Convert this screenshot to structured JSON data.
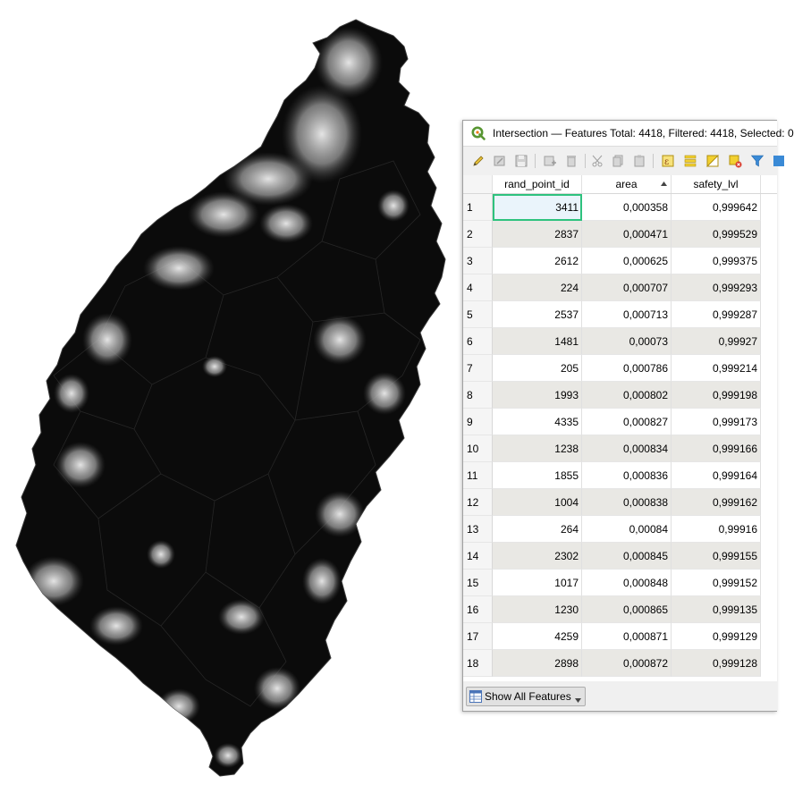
{
  "window": {
    "title": "Intersection — Features Total: 4418, Filtered: 4418, Selected: 0"
  },
  "toolbar": {
    "buttons": [
      {
        "name": "toggle-editing-icon"
      },
      {
        "name": "toggle-multi-edit-icon"
      },
      {
        "name": "save-edits-icon"
      },
      {
        "name": "add-feature-icon"
      },
      {
        "name": "delete-feature-icon"
      },
      {
        "name": "cut-icon"
      },
      {
        "name": "copy-icon"
      },
      {
        "name": "paste-icon"
      },
      {
        "name": "select-by-expression-icon"
      },
      {
        "name": "select-all-icon"
      },
      {
        "name": "invert-selection-icon"
      },
      {
        "name": "deselect-all-icon"
      },
      {
        "name": "filter-icon"
      }
    ]
  },
  "table": {
    "columns": [
      "rand_point_id",
      "area",
      "safety_lvl"
    ],
    "sorted_column": "area",
    "rows": [
      {
        "n": "1",
        "rand_point_id": "3411",
        "area": "0,000358",
        "safety_lvl": "0,999642"
      },
      {
        "n": "2",
        "rand_point_id": "2837",
        "area": "0,000471",
        "safety_lvl": "0,999529"
      },
      {
        "n": "3",
        "rand_point_id": "2612",
        "area": "0,000625",
        "safety_lvl": "0,999375"
      },
      {
        "n": "4",
        "rand_point_id": "224",
        "area": "0,000707",
        "safety_lvl": "0,999293"
      },
      {
        "n": "5",
        "rand_point_id": "2537",
        "area": "0,000713",
        "safety_lvl": "0,999287"
      },
      {
        "n": "6",
        "rand_point_id": "1481",
        "area": "0,00073",
        "safety_lvl": "0,99927"
      },
      {
        "n": "7",
        "rand_point_id": "205",
        "area": "0,000786",
        "safety_lvl": "0,999214"
      },
      {
        "n": "8",
        "rand_point_id": "1993",
        "area": "0,000802",
        "safety_lvl": "0,999198"
      },
      {
        "n": "9",
        "rand_point_id": "4335",
        "area": "0,000827",
        "safety_lvl": "0,999173"
      },
      {
        "n": "10",
        "rand_point_id": "1238",
        "area": "0,000834",
        "safety_lvl": "0,999166"
      },
      {
        "n": "11",
        "rand_point_id": "1855",
        "area": "0,000836",
        "safety_lvl": "0,999164"
      },
      {
        "n": "12",
        "rand_point_id": "1004",
        "area": "0,000838",
        "safety_lvl": "0,999162"
      },
      {
        "n": "13",
        "rand_point_id": "264",
        "area": "0,00084",
        "safety_lvl": "0,99916"
      },
      {
        "n": "14",
        "rand_point_id": "2302",
        "area": "0,000845",
        "safety_lvl": "0,999155"
      },
      {
        "n": "15",
        "rand_point_id": "1017",
        "area": "0,000848",
        "safety_lvl": "0,999152"
      },
      {
        "n": "16",
        "rand_point_id": "1230",
        "area": "0,000865",
        "safety_lvl": "0,999135"
      },
      {
        "n": "17",
        "rand_point_id": "4259",
        "area": "0,000871",
        "safety_lvl": "0,999129"
      },
      {
        "n": "18",
        "rand_point_id": "2898",
        "area": "0,000872",
        "safety_lvl": "0,999128"
      }
    ]
  },
  "bottom": {
    "show_all_label": "Show All Features"
  },
  "colors": {
    "map_fill": "#0a0a0a",
    "map_highlight": "#d8d8d8",
    "focus_outline": "#2ec27e",
    "alt_row": "#e9e8e4"
  }
}
